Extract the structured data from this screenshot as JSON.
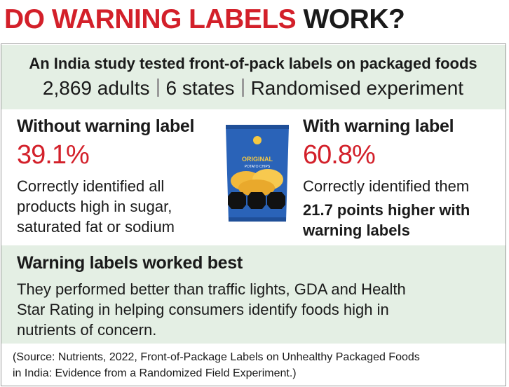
{
  "header": {
    "title_red": "DO WARNING LABELS",
    "title_black": "WORK?"
  },
  "intro": {
    "line1": "An India study tested front-of-pack labels on packaged foods",
    "stats": [
      "2,869 adults",
      "6 states",
      "Randomised experiment"
    ]
  },
  "without": {
    "heading": "Without warning label",
    "percent": "39.1%",
    "description": [
      "Correctly identified all",
      "products high in sugar,",
      "saturated fat or sodium"
    ]
  },
  "with": {
    "heading": "With warning label",
    "percent": "60.8%",
    "description": [
      "Correctly identified them"
    ],
    "highlight": [
      "21.7 points higher with",
      "warning labels"
    ]
  },
  "image": {
    "brand": "ORIGINAL",
    "product": "POTATO CHIPS"
  },
  "conclusion": {
    "heading": "Warning labels worked best",
    "body": [
      "They performed better than traffic lights, GDA and Health",
      "Star Rating in helping consumers identify foods high in",
      "nutrients of concern."
    ]
  },
  "source": [
    "(Source: Nutrients, 2022, Front-of-Package Labels on Unhealthy Packaged Foods",
    "in India: Evidence from a Randomized Field Experiment.)"
  ]
}
